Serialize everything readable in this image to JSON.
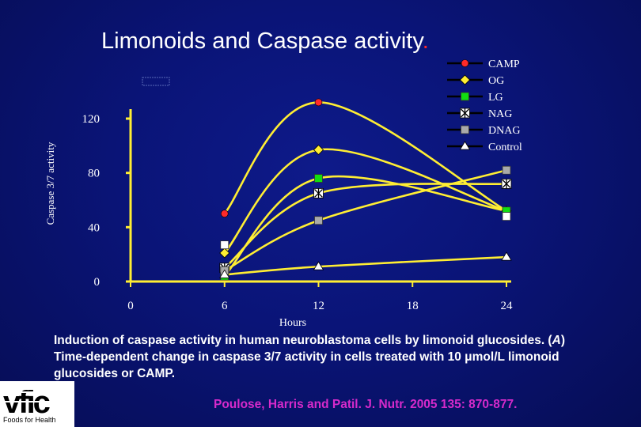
{
  "slide": {
    "title": "Limonoids and Caspase activity",
    "title_dot": ".",
    "caption": {
      "part1": "Induction of caspase activity in human neuroblastoma cells by limonoid glucosides. (",
      "panel": "A",
      "part2": ") Time-dependent change in caspase 3/7 activity in cells treated with 10 μmol/L limonoid glucosides or CAMP."
    },
    "citation": "Poulose, Harris and Patil. J. Nutr. 2005 135: 870-877.",
    "logo": {
      "text": "Foods for Health",
      "mark": "vfic"
    }
  },
  "chart_data": {
    "type": "line",
    "xlabel": "Hours",
    "ylabel": "Caspase 3/7 activity",
    "x_ticks": [
      0,
      6,
      12,
      18,
      24
    ],
    "y_ticks": [
      0,
      40,
      80,
      120
    ],
    "xlim": [
      0,
      24
    ],
    "ylim": [
      0,
      120
    ],
    "grid": false,
    "legend_position": "top-right",
    "series": [
      {
        "name": "CAMP",
        "marker": "circle",
        "marker_color": "#ff2a2a",
        "x": [
          6,
          12,
          24
        ],
        "y": [
          50,
          132,
          52
        ]
      },
      {
        "name": "OG",
        "marker": "diamond",
        "marker_color": "#ffee33",
        "x": [
          6,
          12,
          24
        ],
        "y": [
          21,
          97,
          52
        ]
      },
      {
        "name": "LG",
        "marker": "square",
        "marker_color": "#11dd11",
        "x": [
          6,
          12,
          24
        ],
        "y": [
          4,
          76,
          52
        ]
      },
      {
        "name": "NAG",
        "marker": "asterisk",
        "marker_color": "#ffffff",
        "x": [
          6,
          12,
          24
        ],
        "y": [
          10,
          65,
          72
        ]
      },
      {
        "name": "DNAG",
        "marker": "square",
        "marker_color": "#aaaaaa",
        "x": [
          6,
          12,
          24
        ],
        "y": [
          8,
          45,
          82
        ]
      },
      {
        "name": "Control",
        "marker": "triangle",
        "marker_color": "#ffffff",
        "x": [
          6,
          12,
          24
        ],
        "y": [
          5,
          11,
          18
        ]
      }
    ],
    "extra_markers": [
      {
        "marker": "square",
        "color": "#ffffff",
        "x": 6,
        "y": 27
      },
      {
        "marker": "square",
        "color": "#ffffff",
        "x": 24,
        "y": 48
      }
    ]
  }
}
